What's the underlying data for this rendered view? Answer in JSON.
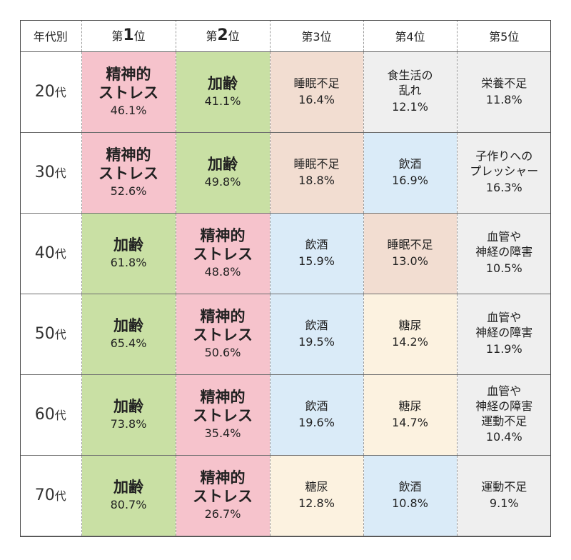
{
  "colors": {
    "精神的ストレス": "#f6c3cc",
    "加齢": "#c9e0a4",
    "睡眠不足": "#f2ddd1",
    "飲酒": "#daebf8",
    "糖尿": "#fcf2e0",
    "other": "#efefef"
  },
  "chart_data": {
    "type": "table",
    "headers": [
      {
        "pre": "年代別",
        "big": "",
        "post": ""
      },
      {
        "pre": "第",
        "big": "1",
        "post": "位"
      },
      {
        "pre": "第",
        "big": "2",
        "post": "位"
      },
      {
        "pre": "第3位",
        "big": "",
        "post": ""
      },
      {
        "pre": "第4位",
        "big": "",
        "post": ""
      },
      {
        "pre": "第5位",
        "big": "",
        "post": ""
      }
    ],
    "rows": [
      {
        "age": "20",
        "suffix": "代",
        "cells": [
          {
            "label": "精神的\nストレス",
            "value": "46.1%",
            "category": "精神的ストレス"
          },
          {
            "label": "加齢",
            "value": "41.1%",
            "category": "加齢"
          },
          {
            "label": "睡眠不足",
            "value": "16.4%",
            "category": "睡眠不足"
          },
          {
            "label": "食生活の\n乱れ",
            "value": "12.1%",
            "category": "other"
          },
          {
            "label": "栄養不足",
            "value": "11.8%",
            "category": "other"
          }
        ]
      },
      {
        "age": "30",
        "suffix": "代",
        "cells": [
          {
            "label": "精神的\nストレス",
            "value": "52.6%",
            "category": "精神的ストレス"
          },
          {
            "label": "加齢",
            "value": "49.8%",
            "category": "加齢"
          },
          {
            "label": "睡眠不足",
            "value": "18.8%",
            "category": "睡眠不足"
          },
          {
            "label": "飲酒",
            "value": "16.9%",
            "category": "飲酒"
          },
          {
            "label": "子作りへの\nプレッシャー",
            "value": "16.3%",
            "category": "other"
          }
        ]
      },
      {
        "age": "40",
        "suffix": "代",
        "cells": [
          {
            "label": "加齢",
            "value": "61.8%",
            "category": "加齢"
          },
          {
            "label": "精神的\nストレス",
            "value": "48.8%",
            "category": "精神的ストレス"
          },
          {
            "label": "飲酒",
            "value": "15.9%",
            "category": "飲酒"
          },
          {
            "label": "睡眠不足",
            "value": "13.0%",
            "category": "睡眠不足"
          },
          {
            "label": "血管や\n神経の障害",
            "value": "10.5%",
            "category": "other"
          }
        ]
      },
      {
        "age": "50",
        "suffix": "代",
        "cells": [
          {
            "label": "加齢",
            "value": "65.4%",
            "category": "加齢"
          },
          {
            "label": "精神的\nストレス",
            "value": "50.6%",
            "category": "精神的ストレス"
          },
          {
            "label": "飲酒",
            "value": "19.5%",
            "category": "飲酒"
          },
          {
            "label": "糖尿",
            "value": "14.2%",
            "category": "糖尿"
          },
          {
            "label": "血管や\n神経の障害",
            "value": "11.9%",
            "category": "other"
          }
        ]
      },
      {
        "age": "60",
        "suffix": "代",
        "cells": [
          {
            "label": "加齢",
            "value": "73.8%",
            "category": "加齢"
          },
          {
            "label": "精神的\nストレス",
            "value": "35.4%",
            "category": "精神的ストレス"
          },
          {
            "label": "飲酒",
            "value": "19.6%",
            "category": "飲酒"
          },
          {
            "label": "糖尿",
            "value": "14.7%",
            "category": "糖尿"
          },
          {
            "label": "血管や\n神経の障害\n運動不足",
            "value": "10.4%",
            "category": "other"
          }
        ]
      },
      {
        "age": "70",
        "suffix": "代",
        "cells": [
          {
            "label": "加齢",
            "value": "80.7%",
            "category": "加齢"
          },
          {
            "label": "精神的\nストレス",
            "value": "26.7%",
            "category": "精神的ストレス"
          },
          {
            "label": "糖尿",
            "value": "12.8%",
            "category": "糖尿"
          },
          {
            "label": "飲酒",
            "value": "10.8%",
            "category": "飲酒"
          },
          {
            "label": "運動不足",
            "value": "9.1%",
            "category": "other"
          }
        ]
      }
    ]
  }
}
